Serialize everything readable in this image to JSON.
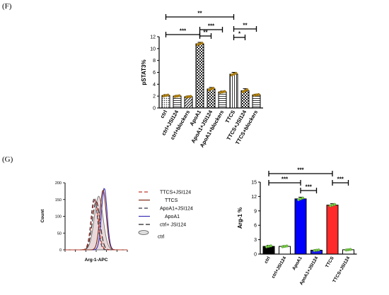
{
  "panel_f": {
    "label": "(F)"
  },
  "panel_g": {
    "label": "(G)"
  },
  "chart_data": [
    {
      "type": "bar",
      "panel": "F",
      "ylabel": "pSTAT3%",
      "ylim": [
        0,
        12
      ],
      "yticks": [
        0,
        2,
        4,
        6,
        8,
        10,
        12
      ],
      "categories": [
        "ctrl",
        "ctrl+JSI124",
        "ctrl+blockers",
        "ApoA1",
        "ApoA1+JSI124",
        "ApoA1+blockers",
        "TTCS",
        "TTCS+JSI124",
        "TTCS+blockers"
      ],
      "values": [
        2.1,
        2.0,
        1.9,
        10.8,
        3.2,
        2.7,
        5.7,
        2.9,
        2.2
      ],
      "errors": [
        0.15,
        0.12,
        0.12,
        0.25,
        0.25,
        0.15,
        0.3,
        0.35,
        0.12
      ],
      "fills": [
        "dots",
        "hlines",
        "diag",
        "check",
        "check",
        "hlines",
        "vlines",
        "check",
        "hlines"
      ],
      "significance": [
        {
          "from": 0,
          "to": 6,
          "label": "**"
        },
        {
          "from": 6,
          "to": 8,
          "label": "**"
        },
        {
          "from": 3,
          "to": 5,
          "label": "***"
        },
        {
          "from": 0,
          "to": 3,
          "label": "***"
        },
        {
          "from": 3,
          "to": 4,
          "label": "**"
        },
        {
          "from": 6,
          "to": 7,
          "label": "*"
        }
      ]
    },
    {
      "type": "histogram-overlay",
      "panel": "G",
      "xlabel": "Arg-1-APC",
      "ylabel": "Count",
      "ylim": [
        0,
        200
      ],
      "yticks": [
        0,
        50,
        100,
        150,
        200
      ],
      "series": [
        {
          "name": "TTCS+JSI124",
          "color": "#c0392b",
          "dash": "5,3",
          "peak_x": 0.48,
          "peak_y": 150,
          "sd": 0.055
        },
        {
          "name": "TTCS",
          "color": "#7b2b1a",
          "dash": "",
          "peak_x": 0.61,
          "peak_y": 178,
          "sd": 0.05
        },
        {
          "name": "ApoA1+JSI124",
          "color": "#333344",
          "dash": "5,3",
          "peak_x": 0.47,
          "peak_y": 155,
          "sd": 0.052
        },
        {
          "name": "ApoA1",
          "color": "#3b2fb5",
          "dash": "",
          "peak_x": 0.63,
          "peak_y": 184,
          "sd": 0.045
        },
        {
          "name": "ctrl+ JSI124",
          "color": "#222222",
          "dash": "7,3",
          "peak_x": 0.5,
          "peak_y": 145,
          "sd": 0.06
        },
        {
          "name": "ctrl",
          "color": "#777777",
          "dash": "",
          "fill": "#ead9da",
          "peak_x": 0.54,
          "peak_y": 160,
          "sd": 0.07
        }
      ]
    },
    {
      "type": "bar",
      "panel": "G",
      "ylabel": "Arg-1 %",
      "ylim": [
        0,
        15
      ],
      "yticks": [
        0,
        3,
        6,
        9,
        12,
        15
      ],
      "categories": [
        "ctrl",
        "ctrl+JSI124",
        "ApoA1",
        "ApoA1+JSI124",
        "TTCS",
        "TTCS+JSI124"
      ],
      "values": [
        1.6,
        1.6,
        11.5,
        0.8,
        10.2,
        0.9
      ],
      "errors": [
        0.2,
        0.15,
        0.35,
        0.12,
        0.3,
        0.12
      ],
      "colors": [
        "#000000",
        "#ffffff",
        "#0000ff",
        "#1a1aee",
        "#ff2a2a",
        "#ffffff"
      ],
      "significance": [
        {
          "from": 0,
          "to": 4,
          "label": "***"
        },
        {
          "from": 0,
          "to": 2,
          "label": "***"
        },
        {
          "from": 4,
          "to": 5,
          "label": "***"
        },
        {
          "from": 2,
          "to": 3,
          "label": "***"
        }
      ]
    }
  ]
}
